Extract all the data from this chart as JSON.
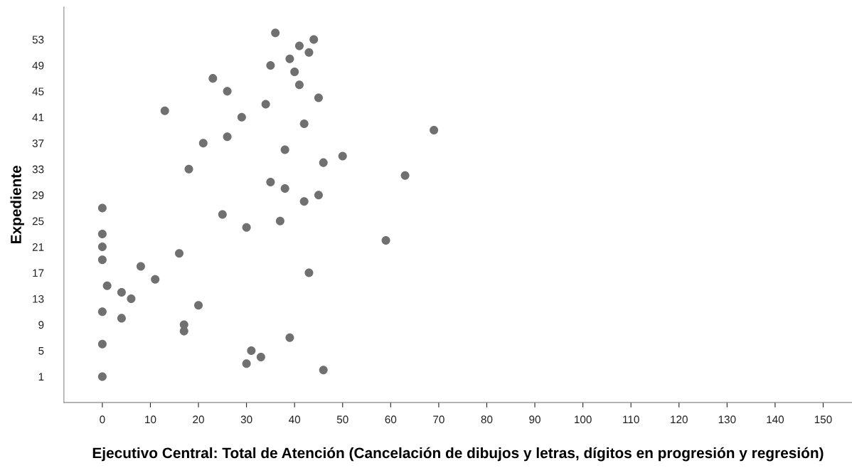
{
  "chart_data": {
    "type": "scatter",
    "xlabel": "Ejecutivo Central: Total de Atención (Cancelación de dibujos y letras, dígitos en progresión y regresión)",
    "ylabel": "Expediente",
    "x": [
      0,
      46,
      30,
      33,
      31,
      0,
      39,
      17,
      17,
      4,
      0,
      20,
      6,
      4,
      1,
      11,
      43,
      8,
      0,
      16,
      0,
      59,
      0,
      30,
      37,
      25,
      0,
      42,
      45,
      38,
      35,
      63,
      18,
      46,
      50,
      38,
      21,
      26,
      69,
      42,
      29,
      13,
      34,
      45,
      26,
      41,
      23,
      40,
      35,
      39,
      43,
      41,
      44,
      36
    ],
    "series": [
      {
        "color": "#707070",
        "values": [
          1,
          2,
          3,
          4,
          5,
          6,
          7,
          8,
          9,
          10,
          11,
          12,
          13,
          14,
          15,
          16,
          17,
          18,
          19,
          20,
          21,
          22,
          23,
          24,
          25,
          26,
          27,
          28,
          29,
          30,
          31,
          32,
          33,
          34,
          35,
          36,
          37,
          38,
          39,
          40,
          41,
          42,
          43,
          44,
          45,
          46,
          47,
          48,
          49,
          50,
          51,
          52,
          53,
          54
        ]
      }
    ],
    "xlim": [
      -8,
      156
    ],
    "ylim": [
      -3,
      58
    ],
    "xticks": [
      0,
      10,
      20,
      30,
      40,
      50,
      60,
      70,
      80,
      90,
      100,
      110,
      120,
      130,
      140,
      150
    ],
    "yticks": [
      1,
      5,
      9,
      13,
      17,
      21,
      25,
      29,
      33,
      37,
      41,
      45,
      49,
      53
    ],
    "marker": "circle",
    "grid": false,
    "legend": false
  }
}
